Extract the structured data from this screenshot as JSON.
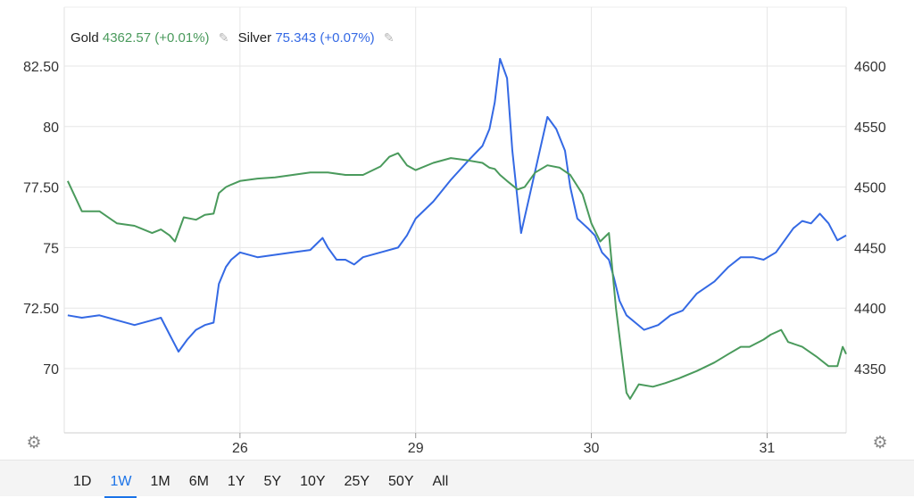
{
  "legend": {
    "gold_name": "Gold",
    "gold_value": "4362.57",
    "gold_change": "(+0.01%)",
    "silver_name": "Silver",
    "silver_value": "75.343",
    "silver_change": "(+0.07%)",
    "edit_icon": "pencil-icon"
  },
  "colors": {
    "gold": "#4a9a5c",
    "silver": "#3469e4",
    "grid": "#e6e6e6",
    "axis_text": "#333333"
  },
  "settings_icon": "gear-icon",
  "range_buttons": [
    "1D",
    "1W",
    "1M",
    "6M",
    "1Y",
    "5Y",
    "10Y",
    "25Y",
    "50Y",
    "All"
  ],
  "active_range": "1W",
  "chart_data": {
    "type": "line",
    "x_ticks": [
      {
        "label": "26",
        "x": 1.0
      },
      {
        "label": "29",
        "x": 2.0
      },
      {
        "label": "30",
        "x": 3.0
      },
      {
        "label": "31",
        "x": 4.0
      }
    ],
    "xlim": [
      0.0,
      4.45
    ],
    "y_left": {
      "ticks": [
        "82.50",
        "80",
        "77.50",
        "75",
        "72.50",
        "70"
      ],
      "tick_values": [
        82.5,
        80,
        77.5,
        75,
        72.5,
        70
      ],
      "lim": [
        67.5,
        83.2
      ]
    },
    "y_right": {
      "ticks": [
        "4600",
        "4550",
        "4500",
        "4450",
        "4400",
        "4350"
      ],
      "tick_values": [
        4600,
        4550,
        4500,
        4450,
        4400,
        4350
      ],
      "lim": [
        4325,
        4605
      ]
    },
    "series": [
      {
        "name": "Silver",
        "axis": "left",
        "points": [
          [
            0.02,
            72.2
          ],
          [
            0.1,
            72.1
          ],
          [
            0.2,
            72.2
          ],
          [
            0.3,
            72.0
          ],
          [
            0.4,
            71.8
          ],
          [
            0.5,
            72.0
          ],
          [
            0.55,
            72.1
          ],
          [
            0.6,
            71.4
          ],
          [
            0.65,
            70.7
          ],
          [
            0.7,
            71.2
          ],
          [
            0.75,
            71.6
          ],
          [
            0.8,
            71.8
          ],
          [
            0.85,
            71.9
          ],
          [
            0.88,
            73.5
          ],
          [
            0.92,
            74.2
          ],
          [
            0.95,
            74.5
          ],
          [
            1.0,
            74.8
          ],
          [
            1.1,
            74.6
          ],
          [
            1.2,
            74.7
          ],
          [
            1.3,
            74.8
          ],
          [
            1.4,
            74.9
          ],
          [
            1.47,
            75.4
          ],
          [
            1.5,
            75.0
          ],
          [
            1.55,
            74.5
          ],
          [
            1.6,
            74.5
          ],
          [
            1.65,
            74.3
          ],
          [
            1.7,
            74.6
          ],
          [
            1.8,
            74.8
          ],
          [
            1.9,
            75.0
          ],
          [
            1.95,
            75.5
          ],
          [
            2.0,
            76.2
          ],
          [
            2.1,
            76.9
          ],
          [
            2.2,
            77.8
          ],
          [
            2.3,
            78.6
          ],
          [
            2.38,
            79.2
          ],
          [
            2.42,
            79.9
          ],
          [
            2.45,
            81.0
          ],
          [
            2.48,
            82.8
          ],
          [
            2.52,
            82.0
          ],
          [
            2.55,
            79.0
          ],
          [
            2.6,
            75.6
          ],
          [
            2.65,
            77.2
          ],
          [
            2.7,
            78.8
          ],
          [
            2.75,
            80.4
          ],
          [
            2.8,
            79.9
          ],
          [
            2.85,
            79.0
          ],
          [
            2.88,
            77.5
          ],
          [
            2.92,
            76.2
          ],
          [
            2.98,
            75.8
          ],
          [
            3.02,
            75.5
          ],
          [
            3.06,
            74.8
          ],
          [
            3.1,
            74.5
          ],
          [
            3.13,
            73.7
          ],
          [
            3.16,
            72.8
          ],
          [
            3.2,
            72.2
          ],
          [
            3.25,
            71.9
          ],
          [
            3.3,
            71.6
          ],
          [
            3.38,
            71.8
          ],
          [
            3.45,
            72.2
          ],
          [
            3.52,
            72.4
          ],
          [
            3.6,
            73.1
          ],
          [
            3.7,
            73.6
          ],
          [
            3.78,
            74.2
          ],
          [
            3.85,
            74.6
          ],
          [
            3.92,
            74.6
          ],
          [
            3.98,
            74.5
          ],
          [
            4.05,
            74.8
          ],
          [
            4.1,
            75.3
          ],
          [
            4.15,
            75.8
          ],
          [
            4.2,
            76.1
          ],
          [
            4.25,
            76.0
          ],
          [
            4.3,
            76.4
          ],
          [
            4.35,
            76.0
          ],
          [
            4.4,
            75.3
          ],
          [
            4.45,
            75.5
          ]
        ]
      },
      {
        "name": "Gold",
        "axis": "right",
        "points": [
          [
            0.02,
            4505
          ],
          [
            0.1,
            4480
          ],
          [
            0.2,
            4480
          ],
          [
            0.3,
            4470
          ],
          [
            0.4,
            4468
          ],
          [
            0.5,
            4462
          ],
          [
            0.55,
            4465
          ],
          [
            0.6,
            4460
          ],
          [
            0.63,
            4455
          ],
          [
            0.68,
            4475
          ],
          [
            0.75,
            4473
          ],
          [
            0.8,
            4477
          ],
          [
            0.85,
            4478
          ],
          [
            0.88,
            4495
          ],
          [
            0.92,
            4500
          ],
          [
            0.95,
            4502
          ],
          [
            1.0,
            4505
          ],
          [
            1.1,
            4507
          ],
          [
            1.2,
            4508
          ],
          [
            1.3,
            4510
          ],
          [
            1.4,
            4512
          ],
          [
            1.5,
            4512
          ],
          [
            1.6,
            4510
          ],
          [
            1.7,
            4510
          ],
          [
            1.8,
            4517
          ],
          [
            1.85,
            4525
          ],
          [
            1.9,
            4528
          ],
          [
            1.95,
            4518
          ],
          [
            2.0,
            4514
          ],
          [
            2.1,
            4520
          ],
          [
            2.2,
            4524
          ],
          [
            2.3,
            4522
          ],
          [
            2.38,
            4520
          ],
          [
            2.42,
            4516
          ],
          [
            2.45,
            4515
          ],
          [
            2.48,
            4510
          ],
          [
            2.52,
            4505
          ],
          [
            2.58,
            4498
          ],
          [
            2.62,
            4500
          ],
          [
            2.68,
            4512
          ],
          [
            2.75,
            4518
          ],
          [
            2.82,
            4516
          ],
          [
            2.88,
            4510
          ],
          [
            2.95,
            4494
          ],
          [
            3.0,
            4470
          ],
          [
            3.05,
            4455
          ],
          [
            3.1,
            4462
          ],
          [
            3.14,
            4400
          ],
          [
            3.17,
            4365
          ],
          [
            3.2,
            4330
          ],
          [
            3.22,
            4325
          ],
          [
            3.27,
            4337
          ],
          [
            3.35,
            4335
          ],
          [
            3.42,
            4338
          ],
          [
            3.5,
            4342
          ],
          [
            3.6,
            4348
          ],
          [
            3.7,
            4355
          ],
          [
            3.78,
            4362
          ],
          [
            3.85,
            4368
          ],
          [
            3.9,
            4368
          ],
          [
            3.98,
            4374
          ],
          [
            4.02,
            4378
          ],
          [
            4.08,
            4382
          ],
          [
            4.12,
            4372
          ],
          [
            4.2,
            4368
          ],
          [
            4.28,
            4360
          ],
          [
            4.35,
            4352
          ],
          [
            4.4,
            4352
          ],
          [
            4.43,
            4368
          ],
          [
            4.45,
            4362
          ]
        ]
      }
    ]
  }
}
